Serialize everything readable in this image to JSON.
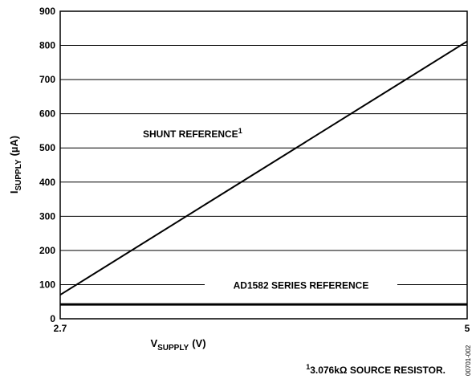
{
  "chart_data": {
    "type": "line",
    "x": [
      2.7,
      5
    ],
    "series": [
      {
        "name": "SHUNT REFERENCE",
        "name_note": "1",
        "color": "#000000",
        "values": [
          70,
          812
        ]
      },
      {
        "name": "AD1582 SERIES REFERENCE",
        "color": "#000000",
        "values": [
          42,
          42
        ]
      }
    ],
    "xlim": [
      2.7,
      5
    ],
    "xticks": [
      2.7,
      5
    ],
    "ylim": [
      0,
      900
    ],
    "yticks": [
      0,
      100,
      200,
      300,
      400,
      500,
      600,
      700,
      800,
      900
    ],
    "grid": true,
    "xlabel": {
      "main": "V",
      "sub": "SUPPLY",
      "unit": "(V)"
    },
    "ylabel": {
      "main": "I",
      "sub": "SUPPLY",
      "unit": "(µA)"
    },
    "footnote": {
      "mark": "1",
      "text": "3.076kΩ SOURCE RESISTOR."
    },
    "figure_id": "00701-002"
  }
}
